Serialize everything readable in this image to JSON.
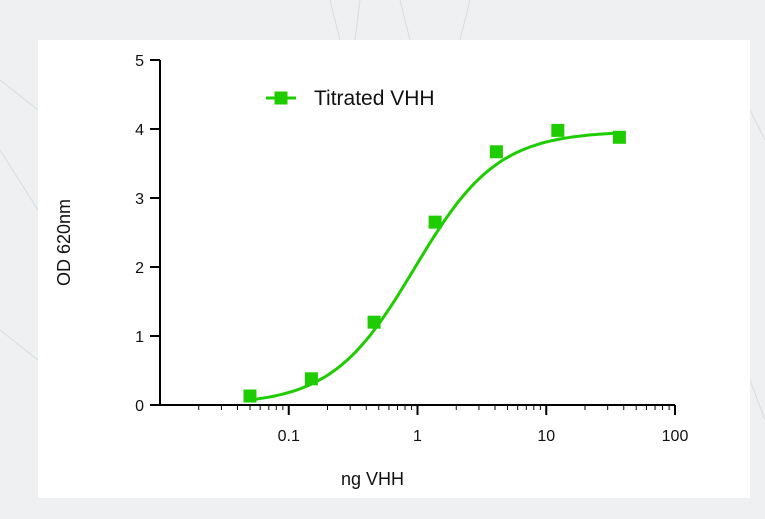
{
  "chart_data": {
    "type": "scatter",
    "title": "",
    "xlabel": "ng VHH",
    "ylabel": "OD 620nm",
    "xscale": "log",
    "xlim": [
      0.01,
      100
    ],
    "ylim": [
      0,
      5
    ],
    "x_ticks": [
      0.1,
      1,
      10,
      100
    ],
    "x_tick_labels": [
      "0.1",
      "1",
      "10",
      "100"
    ],
    "y_ticks": [
      0,
      1,
      2,
      3,
      4,
      5
    ],
    "y_tick_labels": [
      "0",
      "1",
      "2",
      "3",
      "4",
      "5"
    ],
    "grid": false,
    "legend_position": "top-left",
    "series": [
      {
        "name": "Titrated VHH",
        "color": "#1fcc00",
        "marker": "square",
        "fit": "sigmoidal curve",
        "x": [
          0.05,
          0.15,
          0.46,
          1.37,
          4.1,
          12.3,
          37
        ],
        "y": [
          0.13,
          0.38,
          1.2,
          2.65,
          3.67,
          3.98,
          3.88
        ]
      }
    ]
  }
}
